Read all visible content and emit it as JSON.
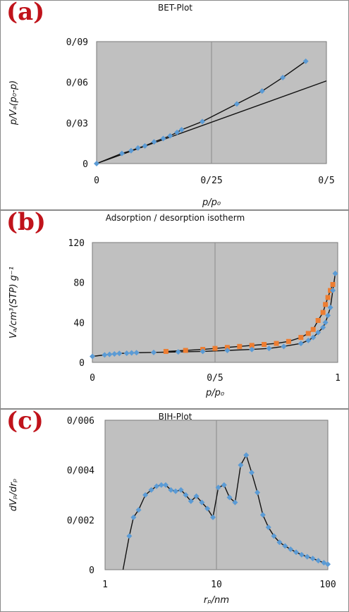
{
  "panels": {
    "a": {
      "label": "(a)",
      "title": "BET-Plot"
    },
    "b": {
      "label": "(b)",
      "title": "Adsorption / desorption isotherm"
    },
    "c": {
      "label": "(c)",
      "title": "BJH-Plot"
    }
  },
  "colors": {
    "plot_bg": "#c0c0c0",
    "gridline": "#8a8a8a",
    "points": "#5b9bd5",
    "desorption": "#ed7d31",
    "curve": "#111111",
    "panel_label": "#c0131b"
  },
  "chart_data": [
    {
      "id": "a",
      "type": "scatter",
      "title": "BET-Plot",
      "xlabel": "p/p₀",
      "ylabel": "p/Vₐ(p₀-p)",
      "xlim": [
        0,
        0.5
      ],
      "ylim": [
        0,
        0.09
      ],
      "x_ticks": [
        0,
        0.25,
        0.5
      ],
      "x_tick_labels": [
        "0",
        "0/25",
        "0/5"
      ],
      "y_ticks": [
        0,
        0.03,
        0.06,
        0.09
      ],
      "y_tick_labels": [
        "0",
        "0/03",
        "0/06",
        "0/09"
      ],
      "grid": "vertical at x=0.25",
      "series": [
        {
          "x": [
            0,
            0.055,
            0.075,
            0.09,
            0.105,
            0.125,
            0.145,
            0.16,
            0.175,
            0.185,
            0.23,
            0.305,
            0.36,
            0.405,
            0.455
          ],
          "y": [
            0,
            0.0075,
            0.0095,
            0.0115,
            0.013,
            0.016,
            0.0185,
            0.0205,
            0.023,
            0.025,
            0.031,
            0.044,
            0.0535,
            0.0635,
            0.0755
          ]
        }
      ],
      "lines": [
        {
          "x": [
            0,
            0.5
          ],
          "y": [
            0,
            0.061
          ]
        }
      ]
    },
    {
      "id": "b",
      "type": "scatter",
      "title": "Adsorption / desorption isotherm",
      "xlabel": "p/p₀",
      "ylabel": "Vₐ/cm³(STP) g⁻¹",
      "xlim": [
        0,
        1
      ],
      "ylim": [
        0,
        120
      ],
      "x_ticks": [
        0,
        0.5,
        1
      ],
      "x_tick_labels": [
        "0",
        "0/5",
        "1"
      ],
      "y_ticks": [
        0,
        40,
        80,
        120
      ],
      "y_tick_labels": [
        "0",
        "40",
        "80",
        "120"
      ],
      "grid": "vertical at x=0.5",
      "series": [
        {
          "x": [
            0,
            0.05,
            0.07,
            0.09,
            0.11,
            0.14,
            0.16,
            0.18,
            0.25,
            0.35,
            0.45,
            0.55,
            0.65,
            0.72,
            0.78,
            0.85,
            0.88,
            0.9,
            0.92,
            0.94,
            0.95,
            0.96,
            0.97,
            0.98,
            0.99
          ],
          "y": [
            6,
            7.5,
            8,
            8.5,
            9,
            9.2,
            9.5,
            9.7,
            10,
            10.5,
            11,
            12,
            13,
            14,
            16,
            19,
            22,
            25,
            30,
            35,
            40,
            47,
            55,
            72,
            89
          ]
        },
        {
          "x": [
            0.3,
            0.38,
            0.45,
            0.5,
            0.55,
            0.6,
            0.65,
            0.7,
            0.75,
            0.8,
            0.85,
            0.88,
            0.9,
            0.92,
            0.94,
            0.95,
            0.96,
            0.97,
            0.98
          ],
          "y": [
            11,
            12,
            13,
            14,
            15,
            16,
            17,
            18,
            19,
            21,
            25,
            29,
            33,
            42,
            50,
            58,
            65,
            72,
            78
          ]
        }
      ]
    },
    {
      "id": "c",
      "type": "line",
      "title": "BJH-Plot",
      "xlabel": "rₚ/nm",
      "ylabel": "dVₚ/drₚ",
      "xscale": "log",
      "xlim": [
        1,
        100
      ],
      "ylim": [
        0,
        0.006
      ],
      "x_ticks": [
        1,
        10,
        100
      ],
      "x_tick_labels": [
        "1",
        "10",
        "100"
      ],
      "y_ticks": [
        0,
        0.002,
        0.004,
        0.006
      ],
      "y_tick_labels": [
        "0",
        "0/002",
        "0/004",
        "0/006"
      ],
      "grid": "vertical at x=10",
      "series": [
        {
          "x": [
            1.65,
            1.8,
            2.0,
            2.3,
            2.6,
            2.9,
            3.2,
            3.5,
            3.9,
            4.3,
            4.8,
            5.3,
            5.9,
            6.6,
            7.4,
            8.3,
            9.3,
            10.4,
            11.7,
            13.1,
            14.7,
            16.5,
            18.5,
            20.7,
            23.3,
            26.1,
            29.3,
            32.8,
            36.8,
            41.3,
            46.3,
            51.9,
            58.2,
            65.3,
            73.2,
            82.1,
            92.1,
            100
          ],
          "y": [
            0.00135,
            0.0021,
            0.0024,
            0.003,
            0.0032,
            0.00335,
            0.0034,
            0.0034,
            0.0032,
            0.00315,
            0.0032,
            0.003,
            0.00275,
            0.00295,
            0.0027,
            0.00245,
            0.0021,
            0.0033,
            0.0034,
            0.0029,
            0.0027,
            0.0042,
            0.0046,
            0.0039,
            0.0031,
            0.0022,
            0.0017,
            0.00135,
            0.0011,
            0.00095,
            0.00082,
            0.0007,
            0.0006,
            0.00052,
            0.00045,
            0.00036,
            0.00028,
            0.00022
          ]
        }
      ],
      "curve_extends_to": {
        "x": 1.45,
        "y": 0
      }
    }
  ]
}
